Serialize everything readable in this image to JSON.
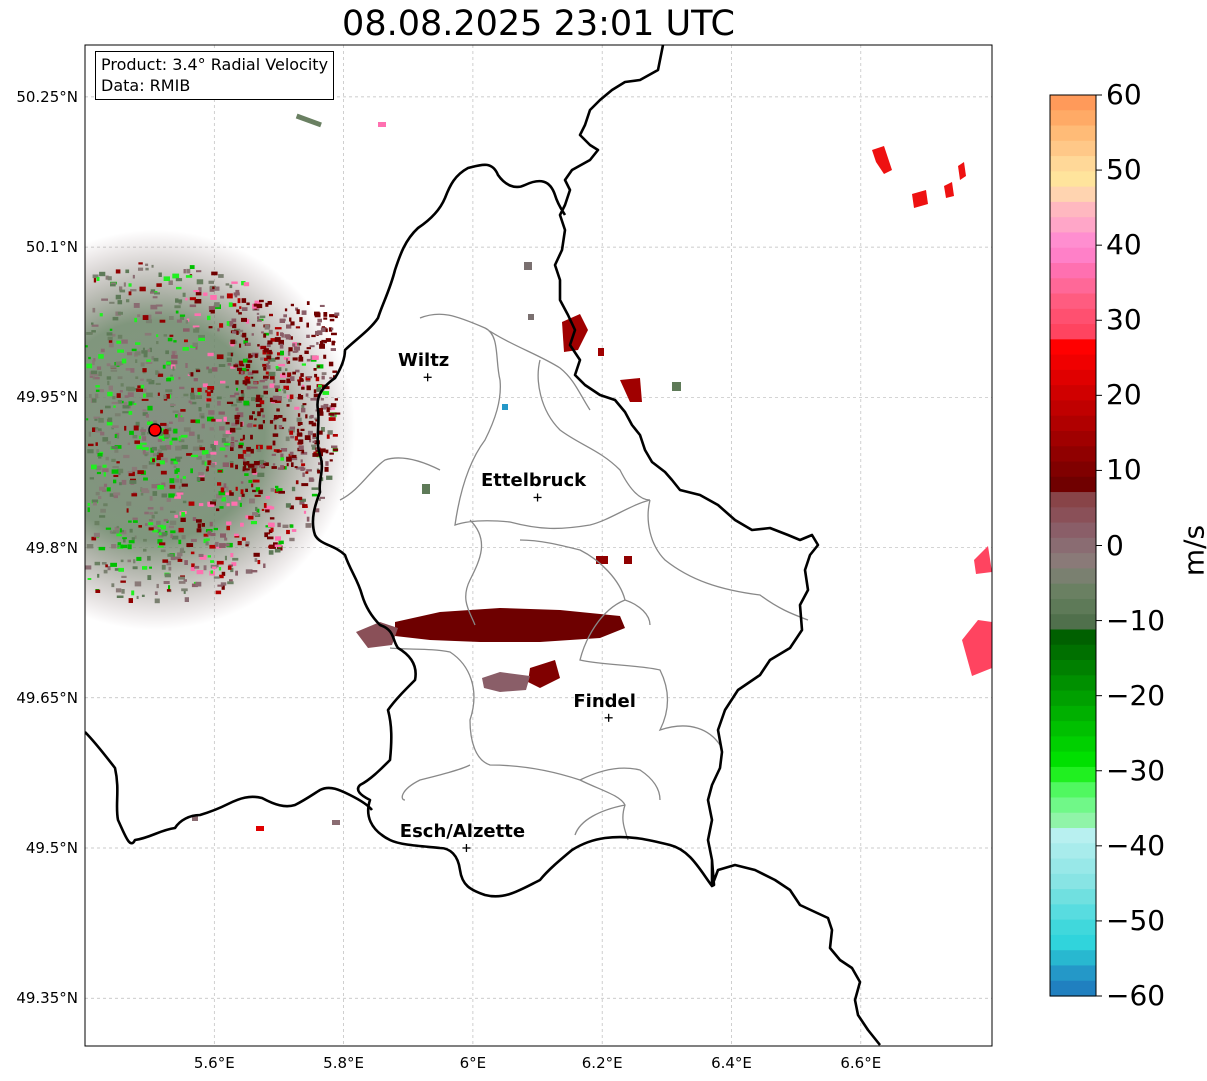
{
  "title": "08.08.2025 23:01 UTC",
  "info": {
    "product_line": "Product: 3.4° Radial Velocity",
    "data_line": "Data: RMIB"
  },
  "axes": {
    "lat_labels": [
      "50.25°N",
      "50.1°N",
      "49.95°N",
      "49.8°N",
      "49.65°N",
      "49.5°N",
      "49.35°N"
    ],
    "lat_values": [
      50.25,
      50.1,
      49.95,
      49.8,
      49.65,
      49.5,
      49.35
    ],
    "lon_labels": [
      "5.6°E",
      "5.8°E",
      "6°E",
      "6.2°E",
      "6.4°E",
      "6.6°E"
    ],
    "lon_values": [
      5.6,
      5.8,
      6.0,
      6.2,
      6.4,
      6.6
    ],
    "lon_range": [
      5.4,
      6.8
    ],
    "lat_range": [
      49.3,
      50.3
    ],
    "grid": true
  },
  "cities": [
    {
      "name": "Wiltz",
      "lon": 5.93,
      "lat": 49.97
    },
    {
      "name": "Ettelbruck",
      "lon": 6.1,
      "lat": 49.85
    },
    {
      "name": "Findel",
      "lon": 6.21,
      "lat": 49.63
    },
    {
      "name": "Esch/Alzette",
      "lon": 5.99,
      "lat": 49.5
    }
  ],
  "radar_site": {
    "lon": 5.5,
    "lat": 49.915,
    "color": "#ff0000"
  },
  "colorbar": {
    "unit": "m/s",
    "ticks": [
      "60",
      "50",
      "40",
      "30",
      "20",
      "10",
      "0",
      "−10",
      "−20",
      "−30",
      "−40",
      "−50",
      "−60"
    ],
    "tick_values": [
      60,
      50,
      40,
      30,
      20,
      10,
      0,
      -10,
      -20,
      -30,
      -40,
      -50,
      -60
    ],
    "range": [
      -60,
      60
    ],
    "colors_top_to_bottom": [
      "#ff9a5a",
      "#ffaa66",
      "#ffbb77",
      "#ffc888",
      "#ffd898",
      "#ffe49c",
      "#ffd4b0",
      "#ffb8c0",
      "#ffa6c8",
      "#ff8ed0",
      "#ff80c8",
      "#ff70b0",
      "#ff6898",
      "#ff5c80",
      "#ff5070",
      "#ff4460",
      "#ff0000",
      "#f00000",
      "#e00000",
      "#d00000",
      "#c00000",
      "#b00000",
      "#a00000",
      "#900000",
      "#800000",
      "#700000",
      "#884448",
      "#8a5058",
      "#8a5e68",
      "#8a6c72",
      "#8a7a78",
      "#7a8070",
      "#6a8062",
      "#5e7a58",
      "#50704c",
      "#006000",
      "#007000",
      "#008000",
      "#009000",
      "#00a000",
      "#00b000",
      "#00c000",
      "#00d000",
      "#00e000",
      "#20f020",
      "#50f860",
      "#70f888",
      "#90f4a8",
      "#b8f0f0",
      "#a8ecec",
      "#98e8e8",
      "#88e4e4",
      "#70e0e0",
      "#58dce0",
      "#40d8dc",
      "#30d4dc",
      "#28b8d0",
      "#2498c8",
      "#2080c0"
    ]
  }
}
